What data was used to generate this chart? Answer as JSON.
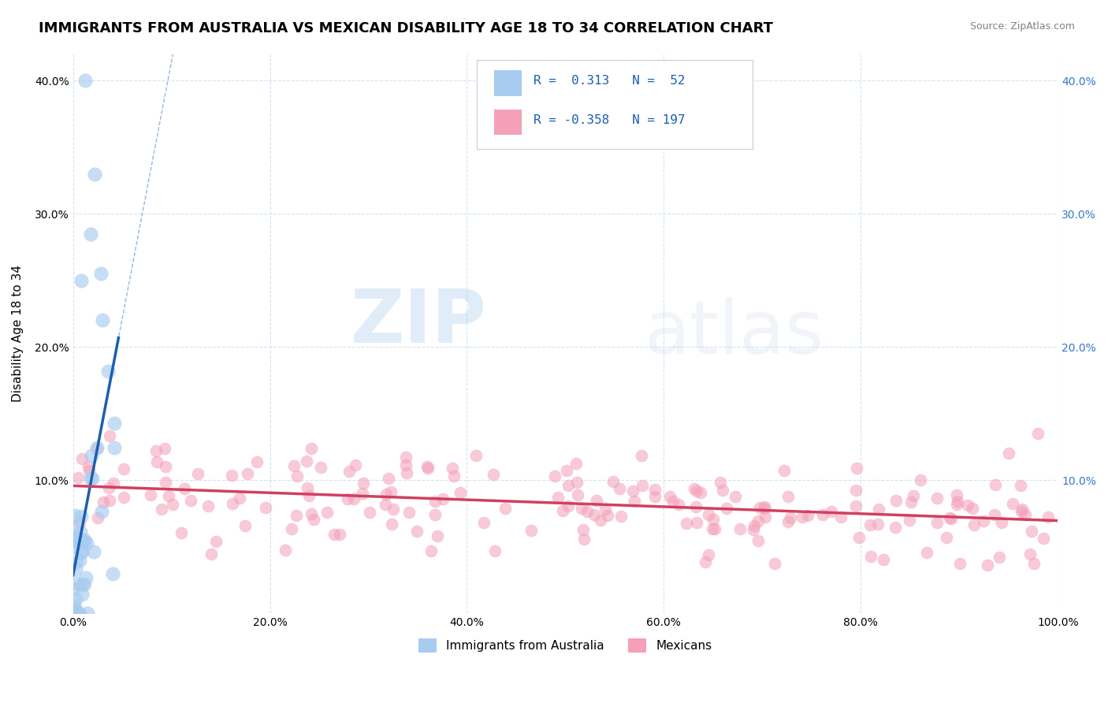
{
  "title": "IMMIGRANTS FROM AUSTRALIA VS MEXICAN DISABILITY AGE 18 TO 34 CORRELATION CHART",
  "source": "Source: ZipAtlas.com",
  "ylabel": "Disability Age 18 to 34",
  "xticklabels": [
    "0.0%",
    "20.0%",
    "40.0%",
    "60.0%",
    "80.0%",
    "100.0%"
  ],
  "yticklabels": [
    "",
    "10.0%",
    "20.0%",
    "30.0%",
    "40.0%"
  ],
  "xlim": [
    0.0,
    1.0
  ],
  "ylim": [
    0.0,
    0.42
  ],
  "legend_label1": "Immigrants from Australia",
  "legend_label2": "Mexicans",
  "blue_color": "#A8CCF0",
  "pink_color": "#F4A0B8",
  "blue_line_color": "#1A5FB0",
  "pink_line_color": "#D04060",
  "background_color": "#FFFFFF",
  "watermark_zip": "ZIP",
  "watermark_atlas": "atlas",
  "title_fontsize": 13,
  "axis_fontsize": 11,
  "tick_fontsize": 10,
  "seed": 42,
  "aus_n": 52,
  "mex_n": 197,
  "aus_slope": 3.2,
  "aus_intercept": 0.005,
  "mex_slope": -0.025,
  "mex_intercept": 0.092
}
